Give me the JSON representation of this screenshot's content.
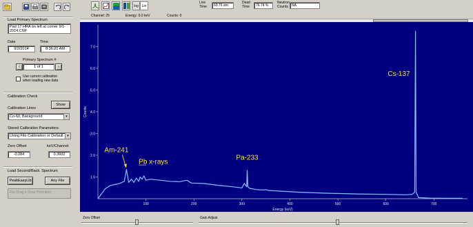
{
  "toolbar": {
    "log_label": "log",
    "lin_label": "Lin",
    "live_time_label": "Live\nTime",
    "live_time_value": "69.76 sec",
    "dead_time_label": "Dead\nTime",
    "dead_time_value": "76.74 %",
    "neutron_label": "Neutron\nCounts",
    "neutron_value": "NA"
  },
  "status": {
    "channel": "Channel: 25",
    "energy": "Energy: 9.0 keV",
    "counts": "Counts: 0"
  },
  "sidebar": {
    "load_primary_heading": "Load Primary Spectrum",
    "file_description": "Pad 17 HRA on left at corner 9/1-2014.CNF",
    "date_label": "Date",
    "date_value": "9/2/2014",
    "time_label": "Time",
    "time_value": "8:36:20 AM",
    "primary_spectrum_label": "Primary Spectrum #",
    "spectrum_index": "1 of 1",
    "use_current_cal": "Use current calibration\nwhen loading new data",
    "calibration_check_heading": "Calibration Check",
    "show_button": "Show",
    "calibration_lines_label": "Calibration Lines",
    "calibration_lines_value": "Co-60, Background",
    "stored_cal_label": "Stored Calibration Parameters",
    "stored_cal_value": "Using File Calibration or Default",
    "zero_offset_label": "Zero Offset",
    "zero_offset_value": "-0.284",
    "kev_channel_label": "keV/Channel",
    "kev_channel_value": "0.3602",
    "load_second_heading": "Load Second/Back. Spectrum",
    "peakeasy_button": "PeakEasyLib",
    "any_file_button": "Any File",
    "drop_zone": "File Drag & Drop Permitted"
  },
  "bottom": {
    "zero_offset_label": "Zero Offset",
    "gain_adjust_label": "Gain Adjust"
  },
  "colors": {
    "plot_background": "#000080",
    "spectrum_line": "#7fc4ff",
    "annotation": "#ffe033",
    "window_face": "#d4d0c8"
  },
  "chart_data": {
    "type": "line",
    "xlabel": "Energy (keV)",
    "ylabel": "Counts",
    "xlim": [
      0,
      770
    ],
    "ylim": [
      0,
      8.0
    ],
    "x_ticks": [
      "100",
      "200",
      "300",
      "400",
      "500",
      "600",
      "700"
    ],
    "y_ticks": [
      "1.0",
      "2.0",
      "3.0",
      "4.0",
      "5.0",
      "6.0",
      "7.0"
    ],
    "grid": false,
    "annotations": [
      {
        "text": "Am-241",
        "x": 59.5,
        "y": 2.05
      },
      {
        "text": "Pb x-rays",
        "x": 85,
        "y": 1.6
      },
      {
        "text": "Pa-233",
        "x": 311,
        "y": 1.8
      },
      {
        "text": "Cs-137",
        "x": 661.7,
        "y": 5.65
      }
    ],
    "series": [
      {
        "x": [
          0,
          15,
          25,
          35,
          45,
          55,
          59.5,
          64,
          70,
          75,
          80,
          85,
          88,
          92,
          96,
          100,
          110,
          130,
          150,
          170,
          185,
          195,
          220,
          250,
          280,
          300,
          305,
          310,
          311,
          312.5,
          316,
          330,
          345,
          350,
          355,
          380,
          420,
          480,
          540,
          600,
          640,
          655,
          660,
          661.7,
          663,
          668,
          690,
          720,
          760
        ],
        "y": [
          0.0,
          0.45,
          0.6,
          0.65,
          0.7,
          0.8,
          1.35,
          0.75,
          0.9,
          0.75,
          0.95,
          0.8,
          1.0,
          0.9,
          1.05,
          0.85,
          0.9,
          0.85,
          0.8,
          0.78,
          0.85,
          0.72,
          0.7,
          0.62,
          0.55,
          0.5,
          0.7,
          0.55,
          1.3,
          0.55,
          0.48,
          0.42,
          0.4,
          0.42,
          0.38,
          0.35,
          0.3,
          0.25,
          0.22,
          0.2,
          0.18,
          0.2,
          0.3,
          7.7,
          0.3,
          0.05,
          0.03,
          0.02,
          0.02
        ]
      }
    ]
  }
}
